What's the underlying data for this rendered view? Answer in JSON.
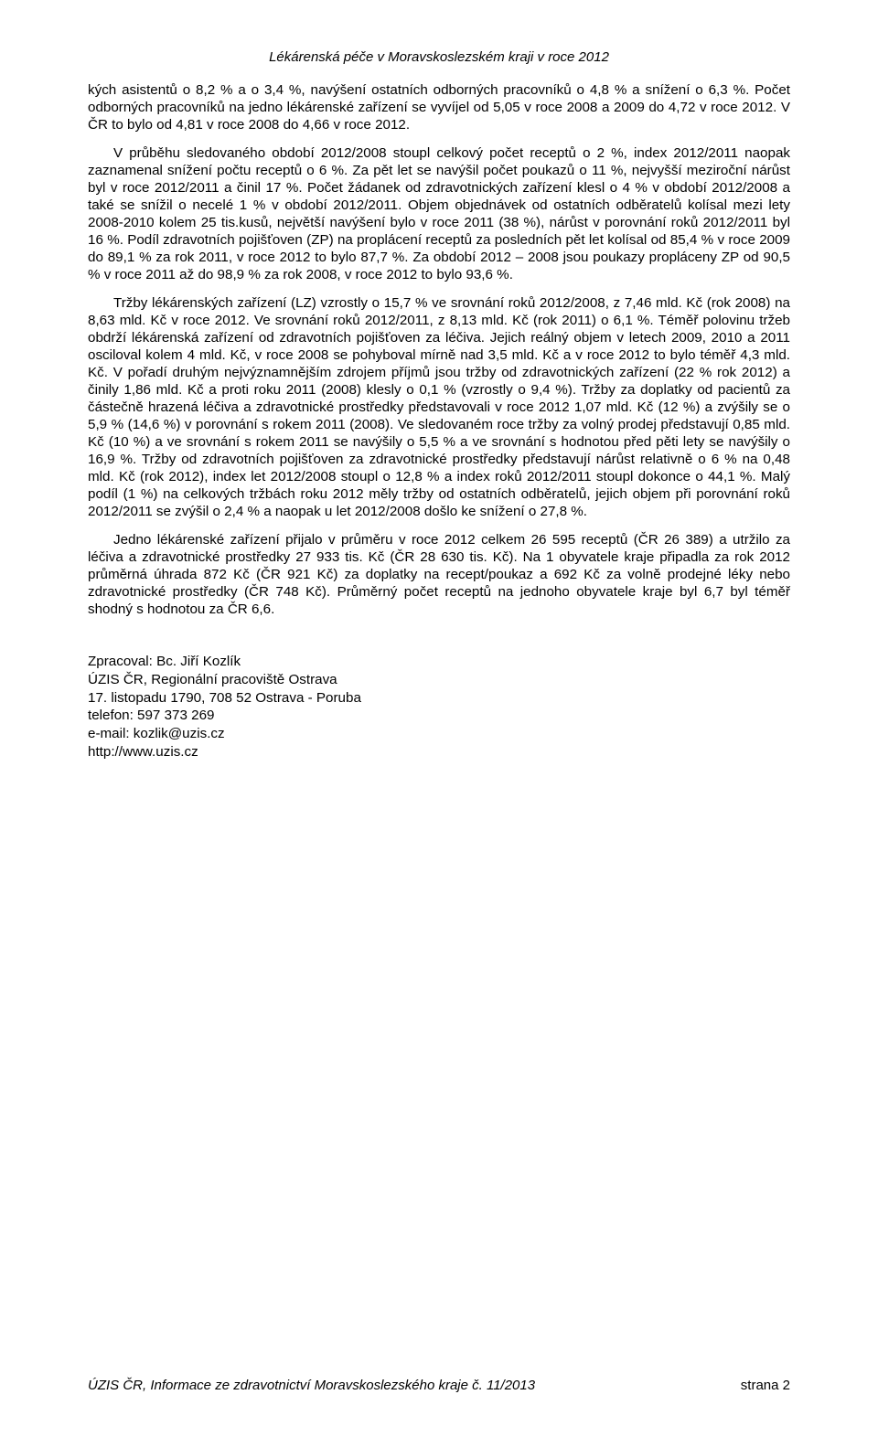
{
  "header": {
    "title": "Lékárenská péče v Moravskoslezském kraji v roce 2012"
  },
  "paragraphs": {
    "p1": "kých asistentů o 8,2 % a o 3,4 %, navýšení ostatních odborných pracovníků o 4,8 % a snížení o 6,3 %. Počet odborných pracovníků na jedno lékárenské zařízení se vyvíjel od 5,05 v roce 2008 a 2009 do 4,72 v roce 2012. V ČR to bylo od 4,81 v roce 2008 do 4,66 v roce 2012.",
    "p2": "V průběhu sledovaného období 2012/2008 stoupl celkový počet receptů o 2 %, index 2012/2011 naopak zaznamenal snížení počtu receptů o 6 %. Za pět let se navýšil počet poukazů o 11 %, nejvyšší meziroční nárůst byl v roce 2012/2011 a činil 17 %. Počet žádanek od zdravotnických zařízení klesl o 4 % v období 2012/2008 a také se snížil o necelé 1 % v období 2012/2011. Objem objednávek od ostatních odběratelů kolísal mezi lety 2008-2010 kolem 25 tis.kusů, největší navýšení bylo v roce 2011 (38 %), nárůst v porovnání roků 2012/2011 byl 16 %. Podíl zdravotních pojišťoven (ZP) na proplácení receptů za posledních pět let kolísal od 85,4 % v roce 2009 do 89,1 % za rok 2011, v roce 2012 to bylo 87,7 %. Za období 2012 – 2008 jsou poukazy propláceny ZP od 90,5 % v roce 2011 až do 98,9 % za rok 2008, v roce 2012 to bylo 93,6 %.",
    "p3": "Tržby lékárenských zařízení (LZ) vzrostly o 15,7 % ve srovnání roků 2012/2008, z 7,46 mld. Kč (rok 2008) na 8,63 mld. Kč v roce 2012. Ve srovnání roků 2012/2011, z 8,13 mld. Kč (rok 2011) o 6,1 %. Téměř polovinu tržeb obdrží lékárenská zařízení od zdravotních pojišťoven za léčiva. Jejich reálný objem v letech 2009, 2010 a 2011 osciloval kolem 4 mld. Kč, v roce 2008 se pohyboval mírně nad 3,5 mld. Kč a v roce 2012 to bylo téměř 4,3 mld. Kč. V pořadí druhým nejvýznamnějším zdrojem příjmů jsou tržby od zdravotnických zařízení (22 % rok 2012) a činily 1,86 mld. Kč a proti roku 2011 (2008) klesly o 0,1 % (vzrostly o 9,4 %). Tržby za doplatky od pacientů za částečně hrazená léčiva a zdravotnické prostředky představovali v roce 2012 1,07 mld. Kč (12 %) a zvýšily se o 5,9 % (14,6 %) v porovnání s rokem 2011 (2008). Ve sledovaném roce tržby za volný prodej představují 0,85 mld. Kč (10 %) a ve srovnání s rokem 2011 se navýšily o 5,5 % a ve srovnání s hodnotou před pěti lety se navýšily o 16,9 %. Tržby od zdravotních pojišťoven za zdravotnické prostředky představují nárůst relativně  o 6 % na 0,48 mld. Kč (rok 2012), index let 2012/2008 stoupl o 12,8 % a index roků 2012/2011 stoupl dokonce o 44,1 %. Malý podíl (1 %) na celkových tržbách roku 2012 měly tržby od ostatních odběratelů, jejich objem při porovnání roků 2012/2011 se zvýšil o 2,4 % a naopak u let 2012/2008 došlo ke snížení o 27,8 %.",
    "p4": "Jedno lékárenské zařízení přijalo v průměru v roce 2012 celkem 26 595 receptů (ČR 26 389) a utržilo za léčiva a zdravotnické prostředky 27 933 tis. Kč (ČR 28 630 tis. Kč). Na 1 obyvatele kraje připadla za rok 2012 průměrná úhrada 872 Kč (ČR 921 Kč) za doplatky na recept/poukaz a 692 Kč za volně prodejné léky nebo zdravotnické prostředky (ČR 748 Kč). Průměrný počet receptů na jednoho obyvatele kraje byl 6,7 byl téměř shodný s hodnotou za ČR 6,6."
  },
  "contact": {
    "author": "Zpracoval: Bc. Jiří Kozlík",
    "org": "ÚZIS ČR, Regionální pracoviště Ostrava",
    "address": "17. listopadu 1790, 708 52  Ostrava - Poruba",
    "phone": "telefon: 597 373 269",
    "email": "e-mail: kozlik@uzis.cz",
    "web": "http://www.uzis.cz"
  },
  "footer": {
    "left": "ÚZIS ČR, Informace ze zdravotnictví Moravskoslezského kraje č. 11/2013",
    "right": "strana 2"
  }
}
